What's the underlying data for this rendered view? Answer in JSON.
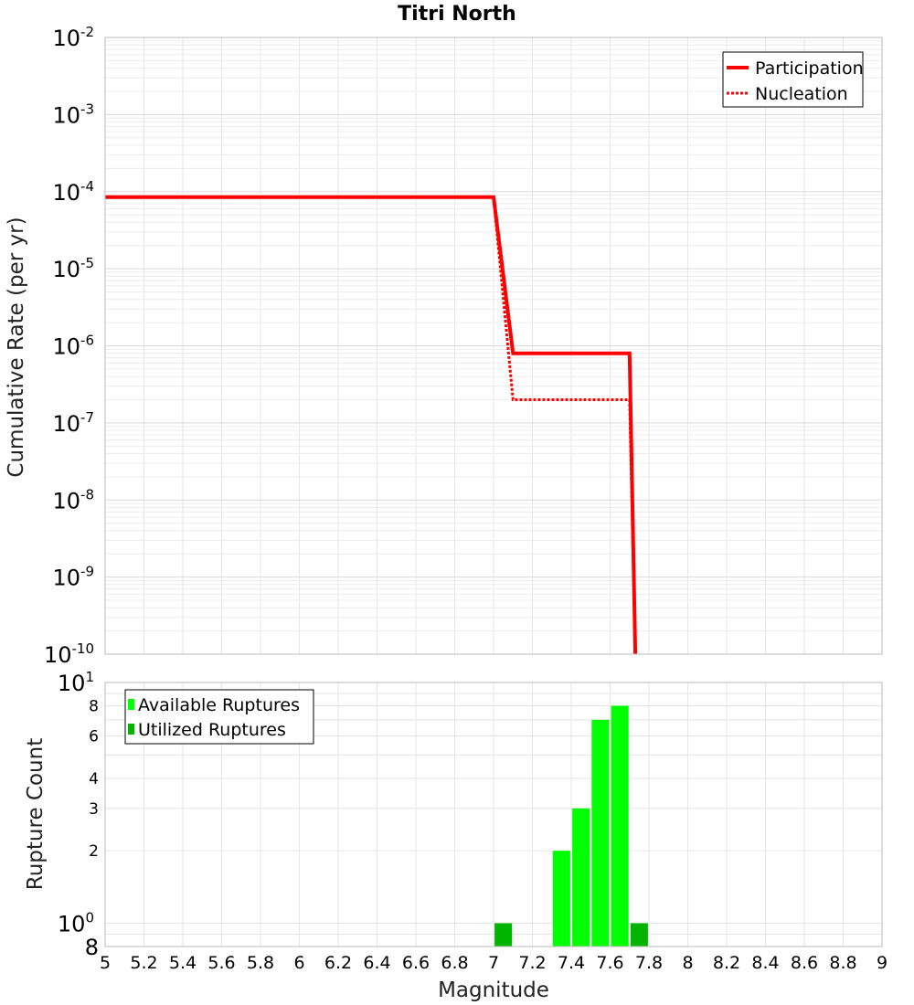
{
  "title": "Titri North",
  "chart_data": [
    {
      "type": "line",
      "title": "Titri North",
      "ylabel": "Cumulative Rate (per yr)",
      "yscale": "log",
      "ylim": [
        1e-10,
        0.01
      ],
      "xlim": [
        5,
        9
      ],
      "grid": true,
      "legend_position": "top-right",
      "y_ticks": [
        {
          "base": "10",
          "exp": "-2"
        },
        {
          "base": "10",
          "exp": "-3"
        },
        {
          "base": "10",
          "exp": "-4"
        },
        {
          "base": "10",
          "exp": "-5"
        },
        {
          "base": "10",
          "exp": "-6"
        },
        {
          "base": "10",
          "exp": "-7"
        },
        {
          "base": "10",
          "exp": "-8"
        },
        {
          "base": "10",
          "exp": "-9"
        },
        {
          "base": "10",
          "exp": "-10"
        }
      ],
      "series": [
        {
          "name": "Participation",
          "color": "#ff0000",
          "style": "solid",
          "x": [
            5.0,
            7.0,
            7.1,
            7.7,
            7.73
          ],
          "y": [
            8.5e-05,
            8.5e-05,
            8e-07,
            8e-07,
            1e-10
          ]
        },
        {
          "name": "Nucleation",
          "color": "#ff0000",
          "style": "dotted",
          "x": [
            5.0,
            7.0,
            7.1,
            7.7,
            7.73
          ],
          "y": [
            8.5e-05,
            8.5e-05,
            2e-07,
            2e-07,
            1e-10
          ]
        }
      ]
    },
    {
      "type": "bar",
      "xlabel": "Magnitude",
      "ylabel": "Rupture Count",
      "yscale": "log",
      "ylim": [
        0.8,
        10
      ],
      "xlim": [
        5,
        9
      ],
      "grid": true,
      "legend_position": "top-left",
      "bar_width": 0.09,
      "x_ticks": [
        "5",
        "5.2",
        "5.4",
        "5.6",
        "5.8",
        "6",
        "6.2",
        "6.4",
        "6.6",
        "6.8",
        "7",
        "7.2",
        "7.4",
        "7.6",
        "7.8",
        "8",
        "8.2",
        "8.4",
        "8.6",
        "8.8",
        "9"
      ],
      "y_ticks": [
        {
          "value": 10,
          "label": "10",
          "exp": "1"
        },
        {
          "value": 8,
          "label": "8",
          "exp": ""
        },
        {
          "value": 6,
          "label": "6",
          "exp": ""
        },
        {
          "value": 4,
          "label": "4",
          "exp": ""
        },
        {
          "value": 3,
          "label": "3",
          "exp": ""
        },
        {
          "value": 2,
          "label": "2",
          "exp": ""
        },
        {
          "value": 1,
          "label": "10",
          "exp": "0"
        },
        {
          "value": 0.8,
          "label": "8",
          "exp": ""
        }
      ],
      "series": [
        {
          "name": "Available Ruptures",
          "color": "#00ff00",
          "x": [
            7.35,
            7.45,
            7.55,
            7.65
          ],
          "values": [
            2,
            3,
            7,
            8
          ]
        },
        {
          "name": "Utilized Ruptures",
          "color": "#00b400",
          "x": [
            7.05,
            7.75
          ],
          "values": [
            1,
            1
          ]
        }
      ]
    }
  ]
}
